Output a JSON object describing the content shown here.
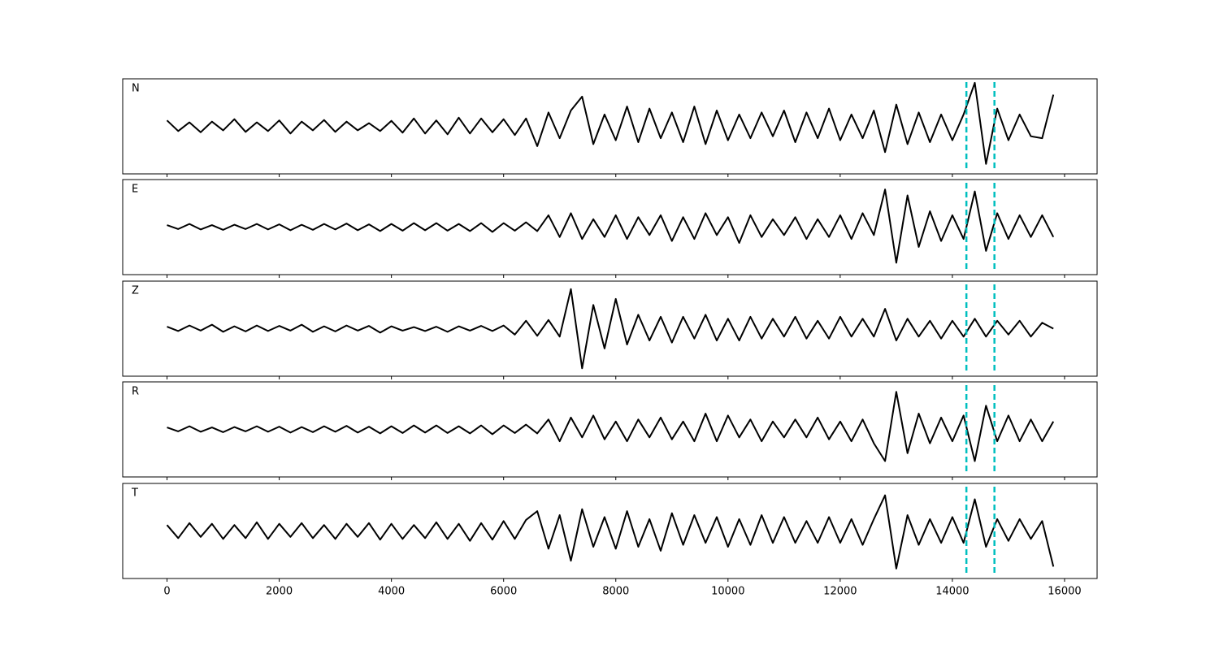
{
  "chart_data": [
    {
      "type": "line",
      "label": "N",
      "color": "#000000",
      "xlim": [
        -790,
        16580
      ],
      "ylim": [
        -1.2,
        1.2
      ],
      "xticks": [
        0,
        2000,
        4000,
        6000,
        8000,
        10000,
        12000,
        14000,
        16000
      ],
      "markers": [
        14250,
        14750
      ],
      "marker_color": "#00bfbf",
      "x": [
        0,
        200,
        400,
        600,
        800,
        1000,
        1200,
        1400,
        1600,
        1800,
        2000,
        2200,
        2400,
        2600,
        2800,
        3000,
        3200,
        3400,
        3600,
        3800,
        4000,
        4200,
        4400,
        4600,
        4800,
        5000,
        5200,
        5400,
        5600,
        5800,
        6000,
        6200,
        6400,
        6600,
        6800,
        7000,
        7200,
        7400,
        7600,
        7800,
        8000,
        8200,
        8400,
        8600,
        8800,
        9000,
        9200,
        9400,
        9600,
        9800,
        10000,
        10200,
        10400,
        10600,
        10800,
        11000,
        11200,
        11400,
        11600,
        11800,
        12000,
        12200,
        12400,
        12600,
        12800,
        13000,
        13200,
        13400,
        13600,
        13800,
        14000,
        14200,
        14400,
        14600,
        14800,
        15000,
        15200,
        15400,
        15600,
        15800
      ],
      "values": [
        0.15,
        -0.12,
        0.1,
        -0.15,
        0.12,
        -0.1,
        0.18,
        -0.14,
        0.1,
        -0.12,
        0.15,
        -0.18,
        0.12,
        -0.1,
        0.16,
        -0.14,
        0.12,
        -0.1,
        0.08,
        -0.12,
        0.14,
        -0.16,
        0.2,
        -0.18,
        0.15,
        -0.2,
        0.22,
        -0.18,
        0.2,
        -0.15,
        0.18,
        -0.22,
        0.2,
        -0.5,
        0.35,
        -0.3,
        0.4,
        0.75,
        -0.45,
        0.3,
        -0.35,
        0.5,
        -0.4,
        0.45,
        -0.3,
        0.35,
        -0.4,
        0.5,
        -0.45,
        0.4,
        -0.35,
        0.3,
        -0.3,
        0.35,
        -0.25,
        0.4,
        -0.4,
        0.35,
        -0.3,
        0.45,
        -0.35,
        0.3,
        -0.3,
        0.4,
        -0.65,
        0.55,
        -0.45,
        0.35,
        -0.4,
        0.3,
        -0.35,
        0.3,
        1.1,
        -0.95,
        0.45,
        -0.35,
        0.3,
        -0.25,
        -0.3,
        0.8
      ]
    },
    {
      "type": "line",
      "label": "E",
      "color": "#000000",
      "xlim": [
        -790,
        16580
      ],
      "ylim": [
        -1.2,
        1.2
      ],
      "xticks": [
        0,
        2000,
        4000,
        6000,
        8000,
        10000,
        12000,
        14000,
        16000
      ],
      "markers": [
        14250,
        14750
      ],
      "marker_color": "#00bfbf",
      "x": [
        0,
        200,
        400,
        600,
        800,
        1000,
        1200,
        1400,
        1600,
        1800,
        2000,
        2200,
        2400,
        2600,
        2800,
        3000,
        3200,
        3400,
        3600,
        3800,
        4000,
        4200,
        4400,
        4600,
        4800,
        5000,
        5200,
        5400,
        5600,
        5800,
        6000,
        6200,
        6400,
        6600,
        6800,
        7000,
        7200,
        7400,
        7600,
        7800,
        8000,
        8200,
        8400,
        8600,
        8800,
        9000,
        9200,
        9400,
        9600,
        9800,
        10000,
        10200,
        10400,
        10600,
        10800,
        11000,
        11200,
        11400,
        11600,
        11800,
        12000,
        12200,
        12400,
        12600,
        12800,
        13000,
        13200,
        13400,
        13600,
        13800,
        14000,
        14200,
        14400,
        14600,
        14800,
        15000,
        15200,
        15400,
        15600,
        15800
      ],
      "values": [
        0.05,
        -0.05,
        0.08,
        -0.06,
        0.05,
        -0.07,
        0.06,
        -0.05,
        0.08,
        -0.06,
        0.07,
        -0.08,
        0.06,
        -0.07,
        0.08,
        -0.06,
        0.09,
        -0.08,
        0.07,
        -0.1,
        0.08,
        -0.09,
        0.1,
        -0.08,
        0.1,
        -0.09,
        0.08,
        -0.1,
        0.1,
        -0.12,
        0.1,
        -0.09,
        0.12,
        -0.1,
        0.3,
        -0.25,
        0.35,
        -0.3,
        0.2,
        -0.25,
        0.3,
        -0.3,
        0.25,
        -0.2,
        0.3,
        -0.35,
        0.25,
        -0.3,
        0.35,
        -0.2,
        0.25,
        -0.4,
        0.3,
        -0.25,
        0.2,
        -0.2,
        0.25,
        -0.3,
        0.2,
        -0.25,
        0.3,
        -0.3,
        0.35,
        -0.2,
        0.95,
        -0.9,
        0.8,
        -0.5,
        0.4,
        -0.35,
        0.3,
        -0.3,
        0.9,
        -0.6,
        0.35,
        -0.3,
        0.3,
        -0.25,
        0.3,
        -0.25
      ]
    },
    {
      "type": "line",
      "label": "Z",
      "color": "#000000",
      "xlim": [
        -790,
        16580
      ],
      "ylim": [
        -1.2,
        1.2
      ],
      "xticks": [
        0,
        2000,
        4000,
        6000,
        8000,
        10000,
        12000,
        14000,
        16000
      ],
      "markers": [
        14250,
        14750
      ],
      "marker_color": "#00bfbf",
      "x": [
        0,
        200,
        400,
        600,
        800,
        1000,
        1200,
        1400,
        1600,
        1800,
        2000,
        2200,
        2400,
        2600,
        2800,
        3000,
        3200,
        3400,
        3600,
        3800,
        4000,
        4200,
        4400,
        4600,
        4800,
        5000,
        5200,
        5400,
        5600,
        5800,
        6000,
        6200,
        6400,
        6600,
        6800,
        7000,
        7200,
        7400,
        7600,
        7800,
        8000,
        8200,
        8400,
        8600,
        8800,
        9000,
        9200,
        9400,
        9600,
        9800,
        10000,
        10200,
        10400,
        10600,
        10800,
        11000,
        11200,
        11400,
        11600,
        11800,
        12000,
        12200,
        12400,
        12600,
        12800,
        13000,
        13200,
        13400,
        13600,
        13800,
        14000,
        14200,
        14400,
        14600,
        14800,
        15000,
        15200,
        15400,
        15600,
        15800
      ],
      "values": [
        0.05,
        -0.06,
        0.08,
        -0.05,
        0.1,
        -0.08,
        0.06,
        -0.07,
        0.08,
        -0.06,
        0.07,
        -0.05,
        0.1,
        -0.08,
        0.06,
        -0.07,
        0.08,
        -0.05,
        0.07,
        -0.1,
        0.06,
        -0.05,
        0.04,
        -0.06,
        0.05,
        -0.08,
        0.06,
        -0.05,
        0.07,
        -0.06,
        0.08,
        -0.15,
        0.2,
        -0.18,
        0.22,
        -0.2,
        1.0,
        -1.0,
        0.6,
        -0.5,
        0.75,
        -0.4,
        0.35,
        -0.3,
        0.3,
        -0.35,
        0.3,
        -0.25,
        0.35,
        -0.3,
        0.25,
        -0.3,
        0.3,
        -0.25,
        0.25,
        -0.2,
        0.3,
        -0.25,
        0.2,
        -0.25,
        0.3,
        -0.2,
        0.25,
        -0.2,
        0.5,
        -0.3,
        0.25,
        -0.2,
        0.2,
        -0.25,
        0.2,
        -0.2,
        0.25,
        -0.2,
        0.2,
        -0.15,
        0.2,
        -0.2,
        0.15,
        0.0
      ]
    },
    {
      "type": "line",
      "label": "R",
      "color": "#000000",
      "xlim": [
        -790,
        16580
      ],
      "ylim": [
        -1.2,
        1.2
      ],
      "xticks": [
        0,
        2000,
        4000,
        6000,
        8000,
        10000,
        12000,
        14000,
        16000
      ],
      "markers": [
        14250,
        14750
      ],
      "marker_color": "#00bfbf",
      "x": [
        0,
        200,
        400,
        600,
        800,
        1000,
        1200,
        1400,
        1600,
        1800,
        2000,
        2200,
        2400,
        2600,
        2800,
        3000,
        3200,
        3400,
        3600,
        3800,
        4000,
        4200,
        4400,
        4600,
        4800,
        5000,
        5200,
        5400,
        5600,
        5800,
        6000,
        6200,
        6400,
        6600,
        6800,
        7000,
        7200,
        7400,
        7600,
        7800,
        8000,
        8200,
        8400,
        8600,
        8800,
        9000,
        9200,
        9400,
        9600,
        9800,
        10000,
        10200,
        10400,
        10600,
        10800,
        11000,
        11200,
        11400,
        11600,
        11800,
        12000,
        12200,
        12400,
        12600,
        12800,
        13000,
        13200,
        13400,
        13600,
        13800,
        14000,
        14200,
        14400,
        14600,
        14800,
        15000,
        15200,
        15400,
        15600,
        15800
      ],
      "values": [
        0.05,
        -0.05,
        0.08,
        -0.06,
        0.05,
        -0.07,
        0.06,
        -0.05,
        0.08,
        -0.06,
        0.07,
        -0.08,
        0.06,
        -0.07,
        0.08,
        -0.06,
        0.09,
        -0.08,
        0.07,
        -0.1,
        0.08,
        -0.09,
        0.1,
        -0.08,
        0.1,
        -0.09,
        0.08,
        -0.1,
        0.1,
        -0.12,
        0.1,
        -0.09,
        0.12,
        -0.1,
        0.25,
        -0.3,
        0.3,
        -0.2,
        0.35,
        -0.25,
        0.2,
        -0.3,
        0.25,
        -0.2,
        0.3,
        -0.25,
        0.2,
        -0.3,
        0.4,
        -0.3,
        0.35,
        -0.2,
        0.25,
        -0.3,
        0.2,
        -0.2,
        0.25,
        -0.2,
        0.3,
        -0.25,
        0.2,
        -0.3,
        0.25,
        -0.35,
        -0.8,
        0.95,
        -0.6,
        0.4,
        -0.35,
        0.3,
        -0.3,
        0.35,
        -0.8,
        0.6,
        -0.3,
        0.35,
        -0.3,
        0.25,
        -0.3,
        0.2
      ]
    },
    {
      "type": "line",
      "label": "T",
      "color": "#000000",
      "xlim": [
        -790,
        16580
      ],
      "ylim": [
        -1.2,
        1.2
      ],
      "xticks": [
        0,
        2000,
        4000,
        6000,
        8000,
        10000,
        12000,
        14000,
        16000
      ],
      "markers": [
        14250,
        14750
      ],
      "marker_color": "#00bfbf",
      "x": [
        0,
        200,
        400,
        600,
        800,
        1000,
        1200,
        1400,
        1600,
        1800,
        2000,
        2200,
        2400,
        2600,
        2800,
        3000,
        3200,
        3400,
        3600,
        3800,
        4000,
        4200,
        4400,
        4600,
        4800,
        5000,
        5200,
        5400,
        5600,
        5800,
        6000,
        6200,
        6400,
        6600,
        6800,
        7000,
        7200,
        7400,
        7600,
        7800,
        8000,
        8200,
        8400,
        8600,
        8800,
        9000,
        9200,
        9400,
        9600,
        9800,
        10000,
        10200,
        10400,
        10600,
        10800,
        11000,
        11200,
        11400,
        11600,
        11800,
        12000,
        12200,
        12400,
        12600,
        12800,
        13000,
        13200,
        13400,
        13600,
        13800,
        14000,
        14200,
        14400,
        14600,
        14800,
        15000,
        15200,
        15400,
        15600,
        15800
      ],
      "values": [
        0.15,
        -0.18,
        0.2,
        -0.15,
        0.18,
        -0.2,
        0.15,
        -0.18,
        0.22,
        -0.2,
        0.18,
        -0.15,
        0.2,
        -0.18,
        0.15,
        -0.2,
        0.18,
        -0.15,
        0.2,
        -0.22,
        0.18,
        -0.2,
        0.15,
        -0.18,
        0.22,
        -0.2,
        0.18,
        -0.25,
        0.2,
        -0.22,
        0.25,
        -0.2,
        0.28,
        0.5,
        -0.45,
        0.4,
        -0.75,
        0.55,
        -0.4,
        0.35,
        -0.45,
        0.5,
        -0.4,
        0.3,
        -0.5,
        0.45,
        -0.35,
        0.4,
        -0.3,
        0.35,
        -0.4,
        0.3,
        -0.35,
        0.4,
        -0.3,
        0.35,
        -0.3,
        0.25,
        -0.3,
        0.35,
        -0.3,
        0.3,
        -0.35,
        0.3,
        0.9,
        -0.95,
        0.4,
        -0.35,
        0.3,
        -0.3,
        0.35,
        -0.3,
        0.8,
        -0.4,
        0.3,
        -0.25,
        0.3,
        -0.2,
        0.25,
        -0.9
      ]
    }
  ]
}
